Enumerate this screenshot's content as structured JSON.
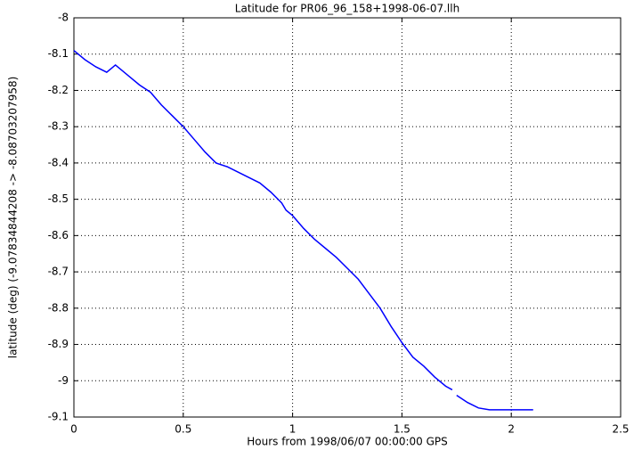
{
  "chart_data": {
    "type": "line",
    "title": "Latitude for PR06_96_158+1998-06-07.llh",
    "x_label": "Hours from 1998/06/07 00:00:00 GPS",
    "y_label": "latitude (deg) (-9.07834844208 -> -8.08703207958)",
    "x": [
      0,
      0.05,
      0.1,
      0.15,
      0.19,
      0.25,
      0.3,
      0.35,
      0.4,
      0.45,
      0.5,
      0.55,
      0.6,
      0.65,
      0.7,
      0.75,
      0.8,
      0.85,
      0.9,
      0.95,
      0.97,
      1.0,
      1.05,
      1.1,
      1.15,
      1.2,
      1.25,
      1.3,
      1.35,
      1.4,
      1.45,
      1.5,
      1.55,
      1.6,
      1.65,
      1.7,
      1.73,
      1.74,
      1.75,
      1.8,
      1.85,
      1.9,
      2.0,
      2.1
    ],
    "values": [
      -8.09,
      -8.115,
      -8.135,
      -8.15,
      -8.13,
      -8.16,
      -8.185,
      -8.205,
      -8.24,
      -8.27,
      -8.3,
      -8.335,
      -8.37,
      -8.4,
      -8.41,
      -8.425,
      -8.44,
      -8.455,
      -8.48,
      -8.51,
      -8.53,
      -8.545,
      -8.58,
      -8.61,
      -8.635,
      -8.66,
      -8.69,
      -8.72,
      -8.76,
      -8.8,
      -8.85,
      -8.895,
      -8.935,
      -8.96,
      -8.99,
      -9.015,
      -9.025,
      null,
      -9.04,
      -9.06,
      -9.075,
      -9.08,
      -9.08,
      -9.08
    ],
    "color": "#0000ff",
    "xlim": [
      0,
      2.5
    ],
    "xticks": [
      0,
      0.5,
      1,
      1.5,
      2,
      2.5
    ],
    "ylim": [
      -9.1,
      -8
    ],
    "yticks": [
      -8,
      -8.1,
      -8.2,
      -8.3,
      -8.4,
      -8.5,
      -8.6,
      -8.7,
      -8.8,
      -8.9,
      -9,
      -9.1
    ],
    "grid": true
  }
}
